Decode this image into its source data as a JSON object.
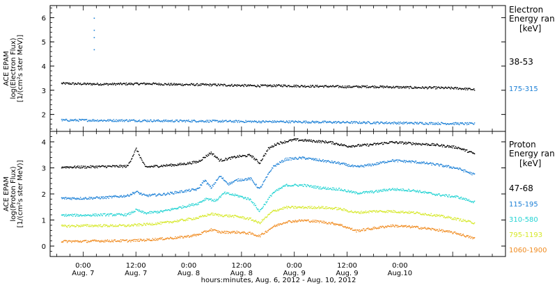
{
  "chart_data": [
    {
      "type": "scatter",
      "panel": "electron",
      "ylabel_lines": [
        "ACE EPAM",
        "log(Electron Flux)",
        "[1/(cm²s ster MeV)]"
      ],
      "ylim": [
        1.3,
        6.5
      ],
      "yticks": [
        2,
        3,
        4,
        5,
        6
      ],
      "legend_title_lines": [
        "Electron",
        "Energy ran",
        "[keV]"
      ],
      "series": [
        {
          "name": "38-53",
          "color": "#000000",
          "points": [
            [
              -5,
              3.3
            ],
            [
              0,
              3.28
            ],
            [
              5,
              3.27
            ],
            [
              10,
              3.28
            ],
            [
              15,
              3.29
            ],
            [
              20,
              3.26
            ],
            [
              25,
              3.25
            ],
            [
              30,
              3.24
            ],
            [
              35,
              3.22
            ],
            [
              40,
              3.2
            ],
            [
              45,
              3.21
            ],
            [
              50,
              3.19
            ],
            [
              55,
              3.18
            ],
            [
              60,
              3.16
            ],
            [
              65,
              3.17
            ],
            [
              70,
              3.15
            ],
            [
              75,
              3.13
            ],
            [
              80,
              3.12
            ],
            [
              85,
              3.1
            ],
            [
              89,
              3.05
            ]
          ]
        },
        {
          "name": "175-315",
          "color": "#1a7fd6",
          "points": [
            [
              -5,
              1.78
            ],
            [
              0,
              1.78
            ],
            [
              5,
              1.77
            ],
            [
              10,
              1.77
            ],
            [
              15,
              1.76
            ],
            [
              20,
              1.75
            ],
            [
              25,
              1.75
            ],
            [
              30,
              1.74
            ],
            [
              35,
              1.73
            ],
            [
              40,
              1.72
            ],
            [
              45,
              1.72
            ],
            [
              50,
              1.71
            ],
            [
              55,
              1.7
            ],
            [
              60,
              1.69
            ],
            [
              65,
              1.68
            ],
            [
              70,
              1.67
            ],
            [
              75,
              1.66
            ],
            [
              80,
              1.65
            ],
            [
              85,
              1.64
            ],
            [
              89,
              1.63
            ]
          ]
        }
      ],
      "spikes": [
        {
          "series": "175-315",
          "points": [
            [
              2.4,
              6.0
            ],
            [
              2.4,
              5.5
            ],
            [
              2.4,
              5.2
            ],
            [
              2.4,
              4.7
            ]
          ]
        }
      ]
    },
    {
      "type": "scatter",
      "panel": "proton",
      "ylabel_lines": [
        "ACE EPAM",
        "log(Proton Flux)",
        "[1/(cm²s ster MeV)]"
      ],
      "ylim": [
        -0.4,
        4.4
      ],
      "yticks": [
        0,
        1,
        2,
        3,
        4
      ],
      "legend_title_lines": [
        "Proton",
        "Energy ran",
        "[keV]"
      ],
      "series": [
        {
          "name": "47-68",
          "color": "#000000",
          "points": [
            [
              -5,
              3.05
            ],
            [
              0,
              3.05
            ],
            [
              5,
              3.07
            ],
            [
              10,
              3.08
            ],
            [
              12,
              3.75
            ],
            [
              14,
              3.05
            ],
            [
              18,
              3.1
            ],
            [
              22,
              3.15
            ],
            [
              26,
              3.25
            ],
            [
              29,
              3.6
            ],
            [
              31,
              3.3
            ],
            [
              35,
              3.45
            ],
            [
              38,
              3.5
            ],
            [
              40,
              3.2
            ],
            [
              42,
              3.75
            ],
            [
              44,
              3.95
            ],
            [
              48,
              4.1
            ],
            [
              52,
              4.05
            ],
            [
              56,
              4.0
            ],
            [
              60,
              3.85
            ],
            [
              65,
              3.9
            ],
            [
              70,
              4.0
            ],
            [
              75,
              3.95
            ],
            [
              80,
              3.9
            ],
            [
              85,
              3.8
            ],
            [
              89,
              3.55
            ]
          ]
        },
        {
          "name": "115-195",
          "color": "#1a7fd6",
          "points": [
            [
              -5,
              1.85
            ],
            [
              0,
              1.85
            ],
            [
              5,
              1.88
            ],
            [
              10,
              1.95
            ],
            [
              12,
              2.1
            ],
            [
              14,
              1.95
            ],
            [
              18,
              2.0
            ],
            [
              22,
              2.1
            ],
            [
              26,
              2.2
            ],
            [
              27.5,
              2.55
            ],
            [
              29,
              2.25
            ],
            [
              31,
              2.7
            ],
            [
              33,
              2.4
            ],
            [
              35,
              2.55
            ],
            [
              38,
              2.6
            ],
            [
              40,
              2.2
            ],
            [
              43,
              3.05
            ],
            [
              46,
              3.35
            ],
            [
              50,
              3.4
            ],
            [
              54,
              3.3
            ],
            [
              58,
              3.2
            ],
            [
              62,
              3.05
            ],
            [
              66,
              3.15
            ],
            [
              70,
              3.3
            ],
            [
              75,
              3.25
            ],
            [
              80,
              3.15
            ],
            [
              85,
              3.0
            ],
            [
              89,
              2.75
            ]
          ]
        },
        {
          "name": "310-580",
          "color": "#22d3d3",
          "points": [
            [
              -5,
              1.2
            ],
            [
              0,
              1.2
            ],
            [
              5,
              1.22
            ],
            [
              10,
              1.22
            ],
            [
              12,
              1.4
            ],
            [
              14,
              1.28
            ],
            [
              18,
              1.35
            ],
            [
              22,
              1.5
            ],
            [
              26,
              1.65
            ],
            [
              28,
              1.85
            ],
            [
              30,
              1.75
            ],
            [
              32,
              2.05
            ],
            [
              35,
              1.95
            ],
            [
              38,
              1.8
            ],
            [
              40,
              1.35
            ],
            [
              43,
              2.05
            ],
            [
              46,
              2.35
            ],
            [
              50,
              2.35
            ],
            [
              54,
              2.25
            ],
            [
              58,
              2.2
            ],
            [
              62,
              2.05
            ],
            [
              66,
              2.1
            ],
            [
              70,
              2.2
            ],
            [
              75,
              2.15
            ],
            [
              80,
              2.0
            ],
            [
              85,
              1.9
            ],
            [
              89,
              1.7
            ]
          ]
        },
        {
          "name": "795-1193",
          "color": "#d6e828",
          "points": [
            [
              -5,
              0.78
            ],
            [
              0,
              0.8
            ],
            [
              5,
              0.8
            ],
            [
              10,
              0.8
            ],
            [
              14,
              0.85
            ],
            [
              18,
              0.9
            ],
            [
              22,
              1.0
            ],
            [
              26,
              1.1
            ],
            [
              29,
              1.25
            ],
            [
              31,
              1.2
            ],
            [
              35,
              1.15
            ],
            [
              38,
              1.05
            ],
            [
              40,
              0.9
            ],
            [
              43,
              1.35
            ],
            [
              46,
              1.5
            ],
            [
              50,
              1.5
            ],
            [
              54,
              1.5
            ],
            [
              58,
              1.45
            ],
            [
              62,
              1.3
            ],
            [
              66,
              1.35
            ],
            [
              70,
              1.35
            ],
            [
              75,
              1.3
            ],
            [
              80,
              1.2
            ],
            [
              85,
              1.05
            ],
            [
              89,
              0.9
            ]
          ]
        },
        {
          "name": "1060-1900",
          "color": "#f08a1e",
          "points": [
            [
              -5,
              0.2
            ],
            [
              0,
              0.2
            ],
            [
              5,
              0.22
            ],
            [
              10,
              0.22
            ],
            [
              14,
              0.25
            ],
            [
              18,
              0.3
            ],
            [
              22,
              0.35
            ],
            [
              26,
              0.45
            ],
            [
              29,
              0.65
            ],
            [
              31,
              0.55
            ],
            [
              35,
              0.55
            ],
            [
              38,
              0.5
            ],
            [
              40,
              0.4
            ],
            [
              43,
              0.75
            ],
            [
              46,
              0.95
            ],
            [
              50,
              1.0
            ],
            [
              54,
              0.95
            ],
            [
              58,
              0.85
            ],
            [
              62,
              0.6
            ],
            [
              66,
              0.7
            ],
            [
              70,
              0.8
            ],
            [
              75,
              0.75
            ],
            [
              80,
              0.65
            ],
            [
              85,
              0.5
            ],
            [
              89,
              0.3
            ]
          ]
        }
      ]
    }
  ],
  "x_axis": {
    "range_hours": [
      -7.5,
      96
    ],
    "major_ticks": [
      {
        "hours": 0,
        "line1": "0:00",
        "line2": "Aug. 7"
      },
      {
        "hours": 12,
        "line1": "12:00",
        "line2": "Aug. 7"
      },
      {
        "hours": 24,
        "line1": "0:00",
        "line2": "Aug. 8"
      },
      {
        "hours": 36,
        "line1": "12:00",
        "line2": "Aug. 8"
      },
      {
        "hours": 48,
        "line1": "0:00",
        "line2": "Aug. 9"
      },
      {
        "hours": 60,
        "line1": "12:00",
        "line2": "Aug. 9"
      },
      {
        "hours": 72,
        "line1": "0:00",
        "line2": "Aug.10"
      }
    ],
    "title": "hours:minutes, Aug.  6, 2012 - Aug. 10, 2012"
  }
}
